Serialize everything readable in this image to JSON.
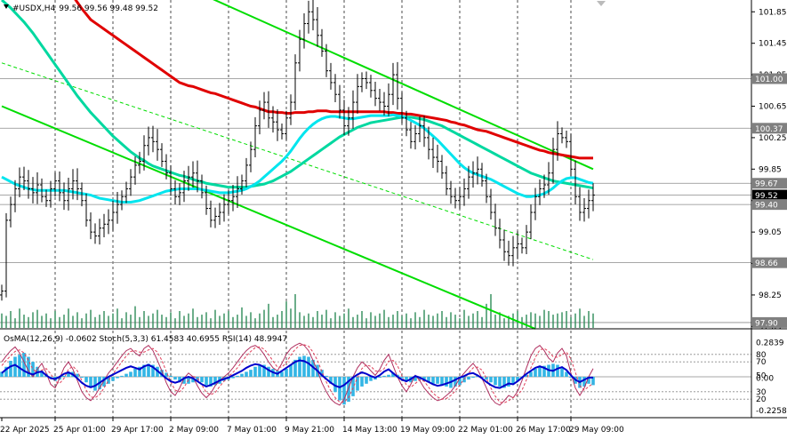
{
  "chart_data": {
    "type": "candlestick",
    "header": {
      "symbol": "#USDX,H4",
      "ohlc": "99.56 99.56 99.48 99.52"
    },
    "price_scale": {
      "ylim": [
        97.82,
        102.0
      ],
      "ticks": [
        "101.85",
        "101.45",
        "101.05",
        "100.65",
        "100.25",
        "99.85",
        "99.45",
        "99.05",
        "98.65",
        "98.25",
        "97.85"
      ]
    },
    "price_labels": [
      {
        "value": 101.0,
        "text": "101.00",
        "color": "#808080"
      },
      {
        "value": 100.37,
        "text": "100.37",
        "color": "#808080"
      },
      {
        "value": 99.67,
        "text": "99.67",
        "color": "#808080"
      },
      {
        "value": 99.52,
        "text": "99.52",
        "color": "#000000"
      },
      {
        "value": 99.4,
        "text": "99.40",
        "color": "#808080"
      },
      {
        "value": 98.66,
        "text": "98.66",
        "color": "#808080"
      },
      {
        "value": 97.9,
        "text": "97.90",
        "color": "#808080"
      }
    ],
    "time_axis": [
      "22 Apr 2025",
      "25 Apr 01:00",
      "29 Apr 17:00",
      "2 May 09:00",
      "7 May 01:00",
      "9 May 21:00",
      "14 May 13:00",
      "19 May 09:00",
      "22 May 01:00",
      "26 May 17:00",
      "29 May 09:00"
    ],
    "bars_count": 134,
    "close": [
      98.3,
      99.2,
      99.4,
      99.6,
      99.75,
      99.7,
      99.6,
      99.55,
      99.65,
      99.5,
      99.45,
      99.6,
      99.7,
      99.55,
      99.45,
      99.6,
      99.7,
      99.6,
      99.45,
      99.2,
      99.05,
      99.0,
      99.1,
      99.15,
      99.2,
      99.3,
      99.4,
      99.5,
      99.6,
      99.75,
      99.9,
      99.95,
      100.15,
      100.25,
      100.2,
      100.1,
      99.95,
      99.8,
      99.6,
      99.5,
      99.55,
      99.7,
      99.75,
      99.8,
      99.7,
      99.55,
      99.35,
      99.2,
      99.25,
      99.3,
      99.4,
      99.45,
      99.5,
      99.6,
      99.7,
      99.9,
      100.1,
      100.4,
      100.6,
      100.7,
      100.5,
      100.45,
      100.35,
      100.3,
      100.5,
      100.7,
      101.2,
      101.5,
      101.7,
      101.85,
      101.75,
      101.55,
      101.35,
      101.1,
      100.95,
      100.8,
      100.6,
      100.4,
      100.5,
      100.7,
      100.9,
      101.0,
      100.95,
      100.85,
      100.75,
      100.7,
      100.65,
      100.8,
      101.05,
      100.75,
      100.5,
      100.35,
      100.2,
      100.3,
      100.4,
      100.25,
      100.1,
      100.0,
      99.95,
      99.8,
      99.6,
      99.5,
      99.45,
      99.5,
      99.6,
      99.75,
      99.8,
      99.85,
      99.7,
      99.5,
      99.3,
      99.1,
      98.95,
      98.8,
      98.75,
      98.85,
      98.9,
      98.85,
      99.05,
      99.3,
      99.5,
      99.6,
      99.65,
      99.8,
      100.1,
      100.3,
      100.25,
      100.2,
      99.85,
      99.5,
      99.3,
      99.35,
      99.45,
      99.52
    ],
    "ema_red": [
      103.25,
      103.17,
      103.1,
      103.02,
      102.94,
      102.87,
      102.8,
      102.72,
      102.65,
      102.57,
      102.49,
      102.42,
      102.35,
      102.27,
      102.19,
      102.12,
      102.05,
      101.97,
      101.89,
      101.82,
      101.75,
      101.71,
      101.67,
      101.63,
      101.59,
      101.55,
      101.51,
      101.47,
      101.43,
      101.39,
      101.35,
      101.31,
      101.27,
      101.23,
      101.19,
      101.15,
      101.11,
      101.07,
      101.03,
      100.99,
      100.95,
      100.93,
      100.91,
      100.9,
      100.88,
      100.86,
      100.84,
      100.82,
      100.81,
      100.79,
      100.77,
      100.75,
      100.73,
      100.71,
      100.69,
      100.67,
      100.65,
      100.64,
      100.62,
      100.6,
      100.58,
      100.58,
      100.57,
      100.57,
      100.56,
      100.56,
      100.57,
      100.57,
      100.57,
      100.58,
      100.58,
      100.59,
      100.59,
      100.59,
      100.58,
      100.58,
      100.58,
      100.58,
      100.58,
      100.58,
      100.58,
      100.58,
      100.58,
      100.58,
      100.58,
      100.58,
      100.58,
      100.57,
      100.57,
      100.56,
      100.56,
      100.55,
      100.55,
      100.54,
      100.53,
      100.52,
      100.51,
      100.5,
      100.49,
      100.48,
      100.47,
      100.45,
      100.44,
      100.42,
      100.41,
      100.39,
      100.37,
      100.35,
      100.34,
      100.33,
      100.31,
      100.29,
      100.27,
      100.25,
      100.23,
      100.21,
      100.19,
      100.17,
      100.15,
      100.13,
      100.11,
      100.09,
      100.08,
      100.06,
      100.05,
      100.04,
      100.03,
      100.02,
      100.01,
      100.0,
      99.99,
      99.99,
      99.99,
      99.99
    ],
    "ma_green": [
      102.0,
      101.95,
      101.9,
      101.84,
      101.78,
      101.72,
      101.65,
      101.58,
      101.5,
      101.42,
      101.34,
      101.26,
      101.18,
      101.1,
      101.02,
      100.94,
      100.86,
      100.78,
      100.71,
      100.64,
      100.57,
      100.51,
      100.45,
      100.39,
      100.33,
      100.27,
      100.22,
      100.17,
      100.12,
      100.07,
      100.03,
      99.99,
      99.96,
      99.92,
      99.89,
      99.87,
      99.85,
      99.83,
      99.81,
      99.79,
      99.77,
      99.76,
      99.74,
      99.72,
      99.7,
      99.69,
      99.67,
      99.66,
      99.65,
      99.64,
      99.63,
      99.62,
      99.62,
      99.62,
      99.62,
      99.62,
      99.63,
      99.64,
      99.65,
      99.66,
      99.68,
      99.7,
      99.73,
      99.76,
      99.79,
      99.82,
      99.86,
      99.9,
      99.94,
      99.98,
      100.02,
      100.06,
      100.1,
      100.14,
      100.18,
      100.22,
      100.26,
      100.29,
      100.32,
      100.35,
      100.38,
      100.4,
      100.42,
      100.44,
      100.45,
      100.46,
      100.47,
      100.48,
      100.49,
      100.5,
      100.51,
      100.51,
      100.51,
      100.5,
      100.49,
      100.48,
      100.46,
      100.44,
      100.42,
      100.4,
      100.37,
      100.34,
      100.31,
      100.28,
      100.25,
      100.22,
      100.19,
      100.16,
      100.13,
      100.1,
      100.07,
      100.04,
      100.01,
      99.98,
      99.95,
      99.92,
      99.89,
      99.86,
      99.83,
      99.8,
      99.78,
      99.76,
      99.74,
      99.72,
      99.7,
      99.69,
      99.68,
      99.67,
      99.66,
      99.65,
      99.64,
      99.63,
      99.62,
      99.61
    ],
    "ma_cyan": [
      99.75,
      99.72,
      99.69,
      99.66,
      99.64,
      99.62,
      99.6,
      99.59,
      99.58,
      99.58,
      99.58,
      99.58,
      99.58,
      99.58,
      99.58,
      99.57,
      99.56,
      99.55,
      99.54,
      99.53,
      99.52,
      99.5,
      99.48,
      99.47,
      99.46,
      99.45,
      99.44,
      99.43,
      99.43,
      99.43,
      99.44,
      99.45,
      99.47,
      99.49,
      99.51,
      99.53,
      99.55,
      99.57,
      99.58,
      99.59,
      99.6,
      99.6,
      99.6,
      99.6,
      99.6,
      99.59,
      99.58,
      99.57,
      99.56,
      99.55,
      99.55,
      99.55,
      99.56,
      99.57,
      99.58,
      99.6,
      99.63,
      99.66,
      99.7,
      99.75,
      99.8,
      99.85,
      99.9,
      99.95,
      100.01,
      100.08,
      100.16,
      100.24,
      100.31,
      100.37,
      100.42,
      100.46,
      100.49,
      100.51,
      100.52,
      100.52,
      100.51,
      100.5,
      100.49,
      100.49,
      100.5,
      100.51,
      100.52,
      100.53,
      100.53,
      100.53,
      100.53,
      100.53,
      100.54,
      100.53,
      100.52,
      100.5,
      100.47,
      100.44,
      100.41,
      100.37,
      100.32,
      100.27,
      100.22,
      100.16,
      100.1,
      100.04,
      99.98,
      99.92,
      99.87,
      99.83,
      99.8,
      99.78,
      99.76,
      99.74,
      99.72,
      99.69,
      99.66,
      99.63,
      99.6,
      99.57,
      99.54,
      99.52,
      99.5,
      99.5,
      99.51,
      99.52,
      99.54,
      99.57,
      99.61,
      99.66,
      99.7,
      99.73,
      99.74,
      99.74,
      99.72,
      99.7,
      99.68,
      99.67
    ],
    "channel_lines": [
      {
        "color": "#00dd00",
        "from": [
          40,
          102.2
        ],
        "to": [
          133,
          99.85
        ]
      },
      {
        "color": "#00dd00",
        "from": [
          0,
          100.65
        ],
        "to": [
          120,
          97.82
        ]
      },
      {
        "color": "#00dd00",
        "dash": true,
        "from": [
          0,
          101.2
        ],
        "to": [
          133,
          98.7
        ]
      }
    ],
    "volume": [
      12,
      10,
      14,
      8,
      16,
      11,
      9,
      13,
      15,
      10,
      12,
      8,
      14,
      9,
      11,
      16,
      10,
      13,
      8,
      12,
      15,
      9,
      11,
      14,
      10,
      12,
      16,
      8,
      13,
      11,
      18,
      9,
      14,
      10,
      12,
      15,
      11,
      9,
      13,
      8,
      14,
      10,
      12,
      16,
      9,
      11,
      13,
      8,
      15,
      10,
      12,
      14,
      9,
      11,
      17,
      10,
      13,
      8,
      12,
      15,
      20,
      9,
      11,
      14,
      22,
      16,
      28,
      13,
      10,
      12,
      9,
      14,
      11,
      15,
      8,
      13,
      10,
      12,
      16,
      9,
      11,
      14,
      8,
      13,
      10,
      12,
      15,
      9,
      11,
      14,
      10,
      12,
      8,
      13,
      9,
      15,
      11,
      10,
      12,
      14,
      9,
      13,
      11,
      8,
      15,
      10,
      12,
      14,
      9,
      20,
      28,
      11,
      13,
      8,
      10,
      12,
      14,
      9,
      11,
      13,
      12,
      10,
      15,
      14,
      11,
      12,
      13,
      14,
      9,
      12,
      16,
      10,
      14,
      12
    ],
    "indicator_legend": "OsMA(12,26,9) -0.0602  Stoch(5,3,3) 61.4583 40.6955  RSI(14) 48.9947",
    "indicator_scale": {
      "ticks": [
        "0.2839",
        "80",
        "70",
        "50",
        "0.00",
        "30",
        "20",
        "-0.2258"
      ],
      "levels": [
        80,
        70,
        50,
        30,
        20
      ],
      "osma_range": [
        -0.2258,
        0.2839
      ]
    },
    "osma": [
      0.05,
      0.1,
      0.16,
      0.2,
      0.22,
      0.24,
      0.2,
      0.15,
      0.1,
      0.06,
      0.03,
      0.0,
      -0.03,
      -0.02,
      0.01,
      0.04,
      0.05,
      0.03,
      0.0,
      -0.04,
      -0.08,
      -0.1,
      -0.09,
      -0.07,
      -0.05,
      -0.03,
      -0.01,
      0.01,
      0.03,
      0.05,
      0.08,
      0.1,
      0.12,
      0.13,
      0.12,
      0.1,
      0.07,
      0.04,
      0.01,
      -0.02,
      -0.04,
      -0.05,
      -0.05,
      -0.04,
      -0.03,
      -0.04,
      -0.06,
      -0.07,
      -0.06,
      -0.05,
      -0.03,
      -0.02,
      -0.01,
      0.01,
      0.03,
      0.05,
      0.07,
      0.1,
      0.12,
      0.12,
      0.1,
      0.08,
      0.06,
      0.05,
      0.08,
      0.12,
      0.17,
      0.2,
      0.21,
      0.2,
      0.17,
      0.12,
      0.07,
      0.01,
      -0.05,
      -0.11,
      -0.17,
      -0.2,
      -0.18,
      -0.14,
      -0.1,
      -0.07,
      -0.05,
      -0.03,
      -0.02,
      0.0,
      0.01,
      0.02,
      0.04,
      0.02,
      -0.01,
      -0.03,
      -0.04,
      -0.03,
      -0.02,
      -0.03,
      -0.04,
      -0.05,
      -0.05,
      -0.06,
      -0.07,
      -0.08,
      -0.07,
      -0.06,
      -0.04,
      -0.02,
      0.0,
      0.01,
      0.0,
      -0.02,
      -0.04,
      -0.06,
      -0.07,
      -0.08,
      -0.07,
      -0.05,
      -0.03,
      -0.01,
      0.02,
      0.05,
      0.08,
      0.1,
      0.11,
      0.12,
      0.13,
      0.12,
      0.09,
      0.05,
      0.0,
      -0.05,
      -0.08,
      -0.07,
      -0.05,
      -0.06
    ],
    "stoch_main": [
      70,
      78,
      85,
      90,
      82,
      70,
      58,
      50,
      60,
      68,
      55,
      40,
      35,
      48,
      62,
      70,
      60,
      45,
      30,
      22,
      18,
      25,
      35,
      45,
      55,
      62,
      70,
      78,
      85,
      88,
      82,
      78,
      88,
      92,
      85,
      72,
      58,
      42,
      30,
      25,
      35,
      48,
      55,
      50,
      38,
      28,
      22,
      28,
      38,
      45,
      50,
      55,
      62,
      70,
      78,
      85,
      90,
      92,
      88,
      80,
      70,
      62,
      58,
      68,
      80,
      88,
      92,
      95,
      92,
      85,
      72,
      58,
      42,
      30,
      20,
      15,
      12,
      20,
      35,
      50,
      62,
      70,
      65,
      58,
      52,
      60,
      72,
      80,
      65,
      50,
      38,
      30,
      40,
      52,
      45,
      35,
      28,
      22,
      18,
      20,
      25,
      30,
      38,
      48,
      55,
      62,
      68,
      60,
      48,
      35,
      22,
      15,
      12,
      18,
      25,
      22,
      30,
      45,
      62,
      78,
      88,
      92,
      85,
      75,
      70,
      82,
      88,
      78,
      55,
      35,
      25,
      35,
      50,
      61
    ],
    "stoch_signal": [
      65,
      72,
      78,
      84,
      86,
      82,
      72,
      60,
      56,
      59,
      61,
      54,
      44,
      41,
      48,
      60,
      64,
      58,
      45,
      32,
      23,
      22,
      26,
      35,
      45,
      54,
      62,
      70,
      78,
      84,
      85,
      83,
      83,
      86,
      88,
      83,
      72,
      57,
      43,
      32,
      30,
      36,
      46,
      51,
      48,
      39,
      29,
      26,
      29,
      37,
      44,
      50,
      56,
      62,
      70,
      78,
      84,
      89,
      90,
      87,
      80,
      71,
      63,
      63,
      69,
      79,
      87,
      92,
      93,
      91,
      83,
      72,
      57,
      43,
      31,
      22,
      16,
      16,
      22,
      35,
      49,
      61,
      66,
      64,
      58,
      57,
      61,
      71,
      72,
      65,
      51,
      39,
      36,
      41,
      46,
      44,
      36,
      28,
      23,
      20,
      21,
      25,
      31,
      39,
      47,
      55,
      62,
      63,
      59,
      48,
      35,
      24,
      16,
      15,
      18,
      22,
      26,
      32,
      46,
      62,
      76,
      86,
      88,
      84,
      77,
      76,
      80,
      83,
      74,
      56,
      38,
      32,
      37,
      41
    ],
    "rsi": [
      55,
      60,
      64,
      66,
      62,
      58,
      55,
      53,
      56,
      57,
      52,
      48,
      47,
      50,
      54,
      56,
      53,
      48,
      42,
      38,
      36,
      38,
      42,
      46,
      50,
      53,
      56,
      59,
      62,
      64,
      62,
      60,
      64,
      66,
      63,
      58,
      53,
      48,
      44,
      42,
      44,
      48,
      50,
      48,
      44,
      40,
      37,
      39,
      42,
      45,
      47,
      49,
      52,
      55,
      58,
      62,
      65,
      67,
      66,
      63,
      59,
      56,
      54,
      58,
      62,
      66,
      70,
      72,
      71,
      68,
      63,
      58,
      52,
      47,
      42,
      38,
      36,
      39,
      44,
      49,
      53,
      56,
      54,
      51,
      49,
      52,
      57,
      60,
      55,
      50,
      46,
      44,
      47,
      51,
      49,
      46,
      43,
      40,
      38,
      39,
      41,
      43,
      46,
      49,
      51,
      54,
      55,
      52,
      48,
      43,
      39,
      36,
      35,
      38,
      41,
      40,
      44,
      49,
      54,
      58,
      62,
      64,
      62,
      59,
      58,
      61,
      63,
      59,
      52,
      46,
      43,
      46,
      49,
      49
    ]
  }
}
